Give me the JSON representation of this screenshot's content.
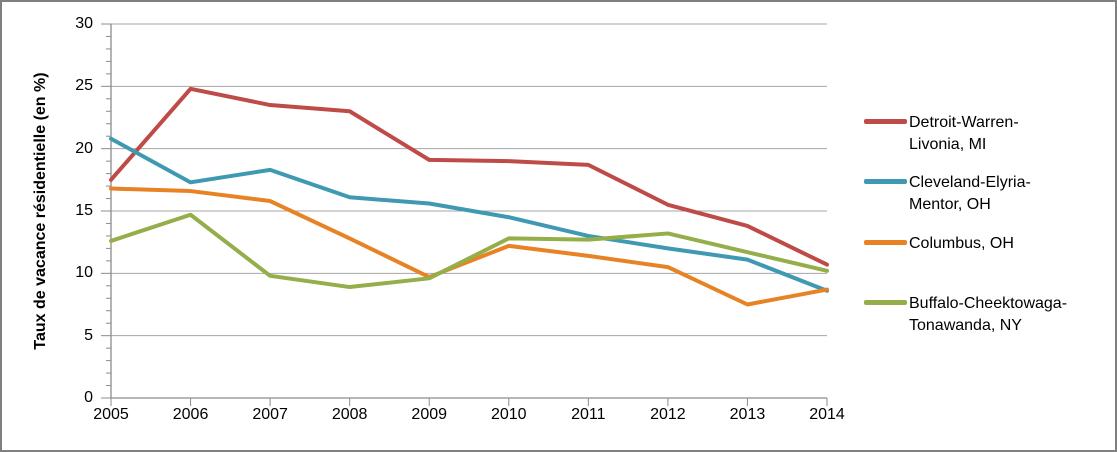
{
  "chart_data": {
    "type": "line",
    "title": "",
    "xlabel": "",
    "ylabel": "Taux de vacance résidentielle (en %)",
    "categories": [
      "2005",
      "2006",
      "2007",
      "2008",
      "2009",
      "2010",
      "2011",
      "2012",
      "2013",
      "2014"
    ],
    "yticks": [
      0,
      5,
      10,
      15,
      20,
      25,
      30
    ],
    "ylim": [
      0,
      30
    ],
    "grid": true,
    "legend_position": "right",
    "series": [
      {
        "name": "Detroit-Warren-Livonia, MI",
        "color": "#BE4B48",
        "values": [
          17.5,
          24.8,
          23.5,
          23.0,
          19.1,
          19.0,
          18.7,
          15.5,
          13.8,
          10.7
        ]
      },
      {
        "name": "Cleveland-Elyria-Mentor, OH",
        "color": "#4099B2",
        "values": [
          20.8,
          17.3,
          18.3,
          16.1,
          15.6,
          14.5,
          13.0,
          12.0,
          11.1,
          8.6
        ]
      },
      {
        "name": "Columbus, OH",
        "color": "#E78324",
        "values": [
          16.8,
          16.6,
          15.8,
          12.8,
          9.7,
          12.2,
          11.4,
          10.5,
          7.5,
          8.7
        ]
      },
      {
        "name": "Buffalo-Cheektowaga-Tonawanda, NY",
        "color": "#94AE4A",
        "values": [
          12.6,
          14.7,
          9.8,
          8.9,
          9.6,
          12.8,
          12.7,
          13.2,
          11.7,
          10.2
        ]
      }
    ]
  },
  "axes": {
    "y_title": "Taux de vacance résidentielle (en %)"
  },
  "legend": {
    "items": [
      {
        "lines": [
          "Detroit-Warren-",
          "Livonia, MI"
        ],
        "color": "#BE4B48"
      },
      {
        "lines": [
          "Cleveland-Elyria-",
          "Mentor, OH"
        ],
        "color": "#4099B2"
      },
      {
        "lines": [
          "Columbus, OH"
        ],
        "color": "#E78324"
      },
      {
        "lines": [
          "Buffalo-Cheektowaga-",
          "Tonawanda, NY"
        ],
        "color": "#94AE4A"
      }
    ]
  },
  "colors": {
    "gridline": "#A6A6A6",
    "axis": "#8C8C8C"
  }
}
